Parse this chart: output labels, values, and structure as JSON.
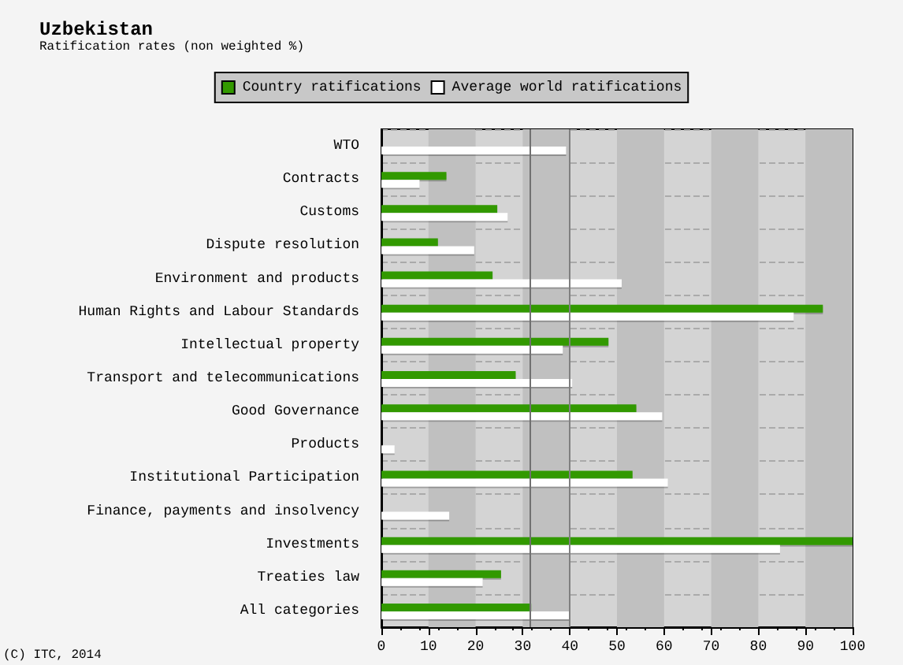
{
  "chart_data": {
    "type": "bar",
    "orientation": "horizontal",
    "title": "Uzbekistan",
    "subtitle": "Ratification rates (non weighted %)",
    "categories": [
      "WTO",
      "Contracts",
      "Customs",
      "Dispute resolution",
      "Environment and products",
      "Human Rights and Labour Standards",
      "Intellectual property",
      "Transport and telecommunications",
      "Good Governance",
      "Products",
      "Institutional Participation",
      "Finance, payments and insolvency",
      "Investments",
      "Treaties law",
      "All categories"
    ],
    "series": [
      {
        "name": "Country ratifications",
        "color": "#339900",
        "values": [
          0,
          13.8,
          24.6,
          12,
          23.6,
          93.7,
          48.2,
          28.5,
          54.1,
          0,
          53.3,
          0,
          100,
          25.4,
          31.8
        ]
      },
      {
        "name": "Average world ratifications",
        "color": "#ffffff",
        "values": [
          39.2,
          8.1,
          26.8,
          19.7,
          51,
          87.5,
          38.5,
          40.5,
          59.6,
          2.8,
          60.8,
          14.4,
          84.6,
          21.5,
          40.1
        ]
      }
    ],
    "xlim": [
      0,
      100
    ],
    "xticks": [
      0,
      10,
      20,
      30,
      40,
      50,
      60,
      70,
      80,
      90,
      100
    ],
    "bands": [
      {
        "axis": "x",
        "from": 10,
        "to": 20,
        "color": "#c0c0c0"
      },
      {
        "axis": "x",
        "from": 30,
        "to": 40,
        "color": "#c0c0c0"
      },
      {
        "axis": "x",
        "from": 50,
        "to": 60,
        "color": "#c0c0c0"
      },
      {
        "axis": "x",
        "from": 70,
        "to": 80,
        "color": "#c0c0c0"
      },
      {
        "axis": "x",
        "from": 90,
        "to": 100,
        "color": "#c0c0c0"
      }
    ],
    "ref_lines": [
      {
        "axis": "x",
        "value": 31.6,
        "color": "#707070"
      },
      {
        "axis": "x",
        "value": 40,
        "color": "#808080"
      }
    ],
    "grid": "y",
    "legend": "top",
    "annotations": [
      "(C) ITC, 2014"
    ]
  }
}
